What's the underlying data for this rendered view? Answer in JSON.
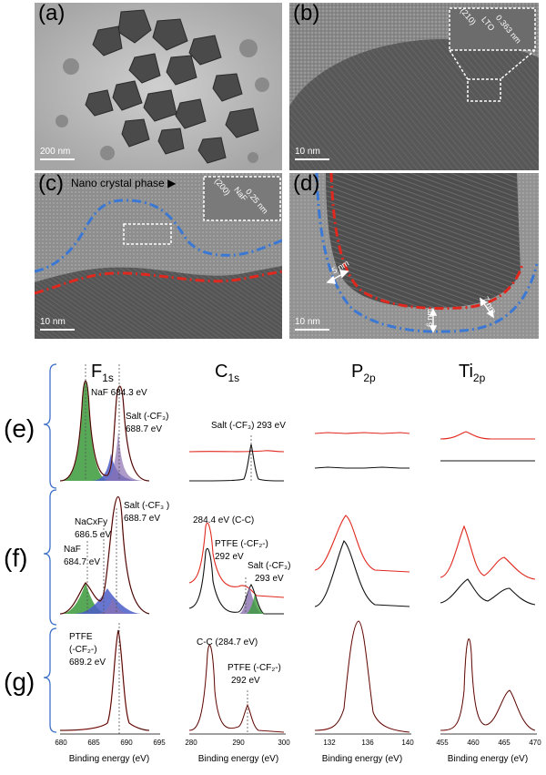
{
  "panels_tem": {
    "a": {
      "label": "(a)",
      "scale": "200 nm"
    },
    "b": {
      "label": "(b)",
      "scale": "10 nm",
      "inset": [
        "(210)",
        "LTO",
        "0.363 nm"
      ]
    },
    "c": {
      "label": "(c)",
      "scale": "10 nm",
      "callout": "Nano crystal phase",
      "inset": [
        "(200)",
        "NaF",
        "0.25 nm"
      ]
    },
    "d": {
      "label": "(d)",
      "scale": "10 nm",
      "thickness": [
        "5 nm",
        "6 nm",
        "7 nm"
      ]
    }
  },
  "xps": {
    "columns": [
      {
        "main": "F",
        "sub": "1s"
      },
      {
        "main": "C",
        "sub": "1s"
      },
      {
        "main": "P",
        "sub": "2p"
      },
      {
        "main": "Ti",
        "sub": "2p"
      }
    ],
    "rows": [
      "(e)",
      "(f)",
      "(g)"
    ],
    "xlabel": "Binding energy (eV)",
    "ticks": {
      "f1s": [
        "680",
        "685",
        "690",
        "695"
      ],
      "c1s": [
        "280",
        "290",
        "300"
      ],
      "p2p": [
        "132",
        "136",
        "140"
      ],
      "ti2p": [
        "455",
        "460",
        "465",
        "470"
      ]
    },
    "annotations": {
      "e_naf": "NaF 684.3 eV",
      "e_salt": "Salt (-CF₃)",
      "e_salt_ev": "688.7 eV",
      "e_c_salt": "Salt (-CF₃) 293 eV",
      "f_salt": "Salt (-CF₃ )",
      "f_salt_ev": "688.7 eV",
      "f_nacxfy": "NaCxFy",
      "f_nacxfy_ev": "686.5 eV",
      "f_naf": "NaF",
      "f_naf_ev": "684.7 eV",
      "f_cc": "284.4 eV (C-C)",
      "f_ptfe": "PTFE (-CF₂-)",
      "f_ptfe_ev": "292 eV",
      "f_csalt": "Salt  (-CF₃)",
      "f_csalt_ev": "293 eV",
      "g_ptfe": "PTFE",
      "g_ptfe2": "(-CF₂-)",
      "g_ptfe_ev": "689.2 eV",
      "g_cc": "C-C (284.7 eV)",
      "g_cptfe": "PTFE (-CF₂-)",
      "g_cptfe_ev": "292 eV"
    },
    "colors": {
      "red": "#e0281e",
      "black": "#111111",
      "green": "#3a9a3a",
      "blue": "#4a5dc8",
      "purple": "#8a6fb0",
      "bracket": "#3d6fc7"
    }
  }
}
